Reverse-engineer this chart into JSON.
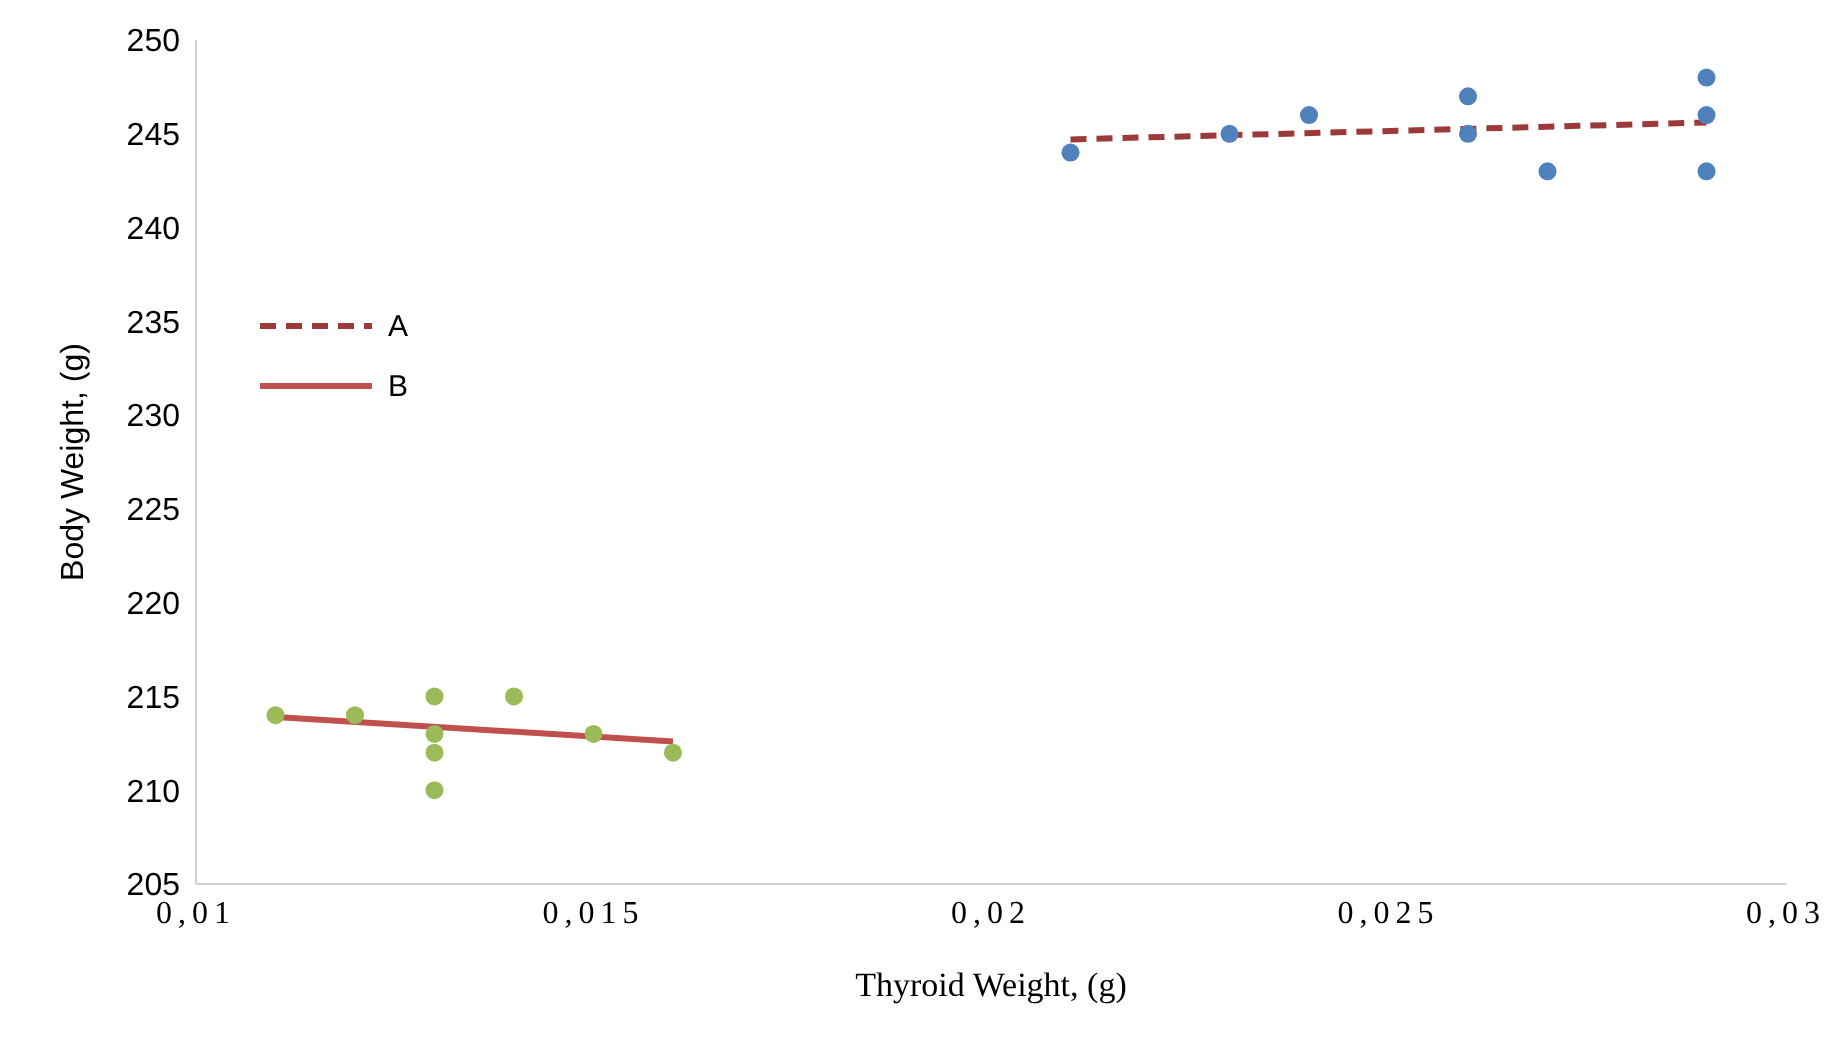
{
  "chart_data": {
    "type": "scatter",
    "xlabel": "Thyroid Weight, (g)",
    "ylabel": "Body Weight, (g)",
    "xlim": [
      0.01,
      0.03
    ],
    "xticks": [
      {
        "value": 0.01,
        "label": "0,01"
      },
      {
        "value": 0.015,
        "label": "0,015"
      },
      {
        "value": 0.02,
        "label": "0,02"
      },
      {
        "value": 0.025,
        "label": "0,025"
      },
      {
        "value": 0.03,
        "label": "0,03"
      }
    ],
    "ylim": [
      205,
      250
    ],
    "yticks": [
      205,
      210,
      215,
      220,
      225,
      230,
      235,
      240,
      245,
      250
    ],
    "grid": false,
    "legend": "left",
    "marker": "circle",
    "series": [
      {
        "color": "#4f81bd",
        "x": [
          0.021,
          0.023,
          0.024,
          0.026,
          0.026,
          0.027,
          0.029,
          0.029,
          0.029
        ],
        "values": [
          244,
          245,
          246,
          247,
          245,
          243,
          248,
          246,
          243
        ]
      },
      {
        "color": "#9bbb59",
        "x": [
          0.011,
          0.012,
          0.013,
          0.013,
          0.013,
          0.013,
          0.014,
          0.015,
          0.016
        ],
        "values": [
          214,
          214,
          215,
          213,
          212,
          210,
          215,
          213,
          212
        ]
      },
      {
        "type": "line",
        "name": "A",
        "color": "#9c3a3a",
        "line_style": "dashed",
        "marker": "none",
        "x": [
          0.021,
          0.029
        ],
        "values": [
          244.7,
          245.6
        ]
      },
      {
        "type": "line",
        "name": "B",
        "color": "#c0504d",
        "line_style": "solid",
        "marker": "none",
        "x": [
          0.011,
          0.016
        ],
        "values": [
          213.9,
          212.6
        ]
      }
    ]
  }
}
